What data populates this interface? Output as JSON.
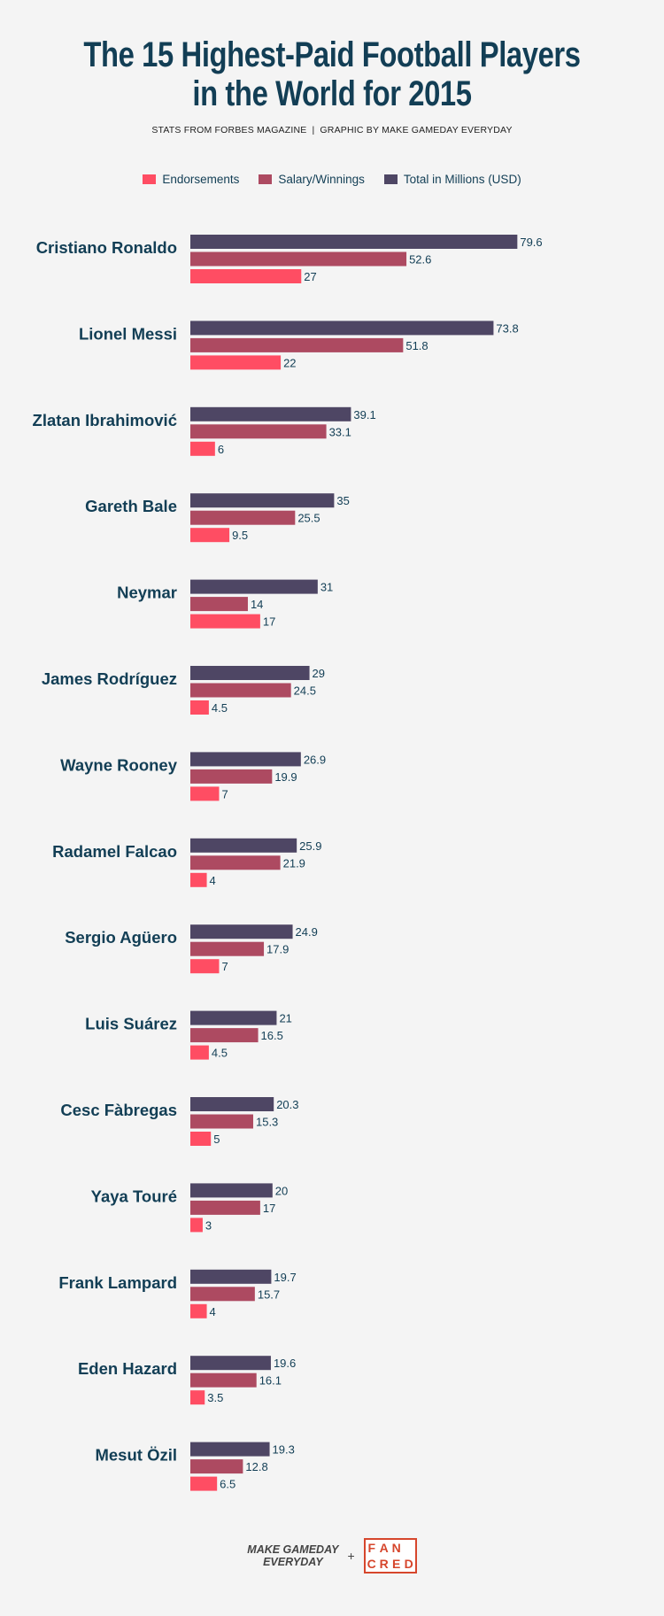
{
  "title_line1": "The 15 Highest-Paid Football Players",
  "title_line2": "in the World for 2015",
  "subtitle_left": "STATS FROM FORBES MAGAZINE",
  "subtitle_sep": "|",
  "subtitle_right": "GRAPHIC BY MAKE GAMEDAY EVERYDAY",
  "footer": {
    "brand_line1": "MAKE GAMEDAY",
    "brand_line2": "EVERYDAY",
    "plus": "+",
    "partner_row1": [
      "F",
      "A",
      "N"
    ],
    "partner_row2": [
      "C",
      "R",
      "E",
      "D"
    ]
  },
  "chart_data": {
    "type": "bar",
    "orientation": "horizontal",
    "categories": [
      "Cristiano Ronaldo",
      "Lionel Messi",
      "Zlatan Ibrahimović",
      "Gareth Bale",
      "Neymar",
      "James Rodríguez",
      "Wayne Rooney",
      "Radamel Falcao",
      "Sergio Agüero",
      "Luis Suárez",
      "Cesc Fàbregas",
      "Yaya Touré",
      "Frank Lampard",
      "Eden Hazard",
      "Mesut Özil"
    ],
    "series": [
      {
        "name": "Total in Millions (USD)",
        "color": "#4e4664",
        "values": [
          79.6,
          73.8,
          39.1,
          35,
          31,
          29,
          26.9,
          25.9,
          24.9,
          21,
          20.3,
          20,
          19.7,
          19.6,
          19.3
        ]
      },
      {
        "name": "Salary/Winnings",
        "color": "#ad4a61",
        "values": [
          52.6,
          51.8,
          33.1,
          25.5,
          14,
          24.5,
          19.9,
          21.9,
          17.9,
          16.5,
          15.3,
          17,
          15.7,
          16.1,
          12.8
        ]
      },
      {
        "name": "Endorsements",
        "color": "#ff4d63",
        "values": [
          27,
          22,
          6,
          9.5,
          17,
          4.5,
          7,
          4,
          7,
          4.5,
          5,
          3,
          4,
          3.5,
          6.5
        ]
      }
    ],
    "legend_order": [
      "Endorsements",
      "Salary/Winnings",
      "Total in Millions (USD)"
    ],
    "legend_position": "top-center",
    "grid": false
  }
}
